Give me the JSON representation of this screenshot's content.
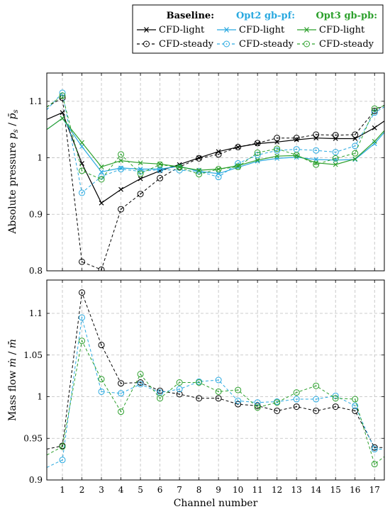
{
  "colors": {
    "baseline": "#000000",
    "opt2": "#29a9e0",
    "opt3": "#2ca02c"
  },
  "legend": {
    "groups": [
      {
        "key": "baseline",
        "header": "Baseline:",
        "light": "CFD-light",
        "steady": "CFD-steady"
      },
      {
        "key": "opt2",
        "header": "Opt2 gb-pf:",
        "light": "CFD-light",
        "steady": "CFD-steady"
      },
      {
        "key": "opt3",
        "header": "Opt3 gb-pb:",
        "light": "CFD-light",
        "steady": "CFD-steady"
      }
    ]
  },
  "chart_data": [
    {
      "type": "line",
      "ylabel": "Absolute pressure p_s / p̄_s",
      "xlabel": "",
      "xlim": [
        0.2,
        17.5
      ],
      "ylim": [
        0.8,
        1.15
      ],
      "yticks": [
        0.8,
        0.9,
        1.0,
        1.1
      ],
      "ytick_labels": [
        "0.8",
        "0.9",
        "1",
        "1.1"
      ],
      "grid": true,
      "x": [
        0.2,
        1,
        2,
        3,
        4,
        5,
        6,
        7,
        8,
        9,
        10,
        11,
        12,
        13,
        14,
        15,
        16,
        17,
        17.5
      ],
      "series": [
        {
          "group": "baseline",
          "kind": "light",
          "values": [
            1.068,
            1.08,
            0.99,
            0.92,
            0.944,
            0.963,
            0.977,
            0.988,
            1.0,
            1.011,
            1.019,
            1.025,
            1.028,
            1.032,
            1.035,
            1.034,
            1.034,
            1.053,
            1.065
          ]
        },
        {
          "group": "baseline",
          "kind": "steady",
          "values": [
            1.09,
            1.106,
            0.816,
            0.802,
            0.909,
            0.936,
            0.964,
            0.984,
            0.999,
            1.006,
            1.019,
            1.026,
            1.035,
            1.035,
            1.041,
            1.04,
            1.041,
            1.083,
            1.093
          ]
        },
        {
          "group": "opt2",
          "kind": "light",
          "values": [
            1.05,
            1.07,
            1.02,
            0.975,
            0.982,
            0.98,
            0.98,
            0.985,
            0.976,
            0.972,
            0.983,
            0.994,
            0.999,
            1.001,
            0.997,
            0.996,
            0.997,
            1.025,
            1.045
          ]
        },
        {
          "group": "opt2",
          "kind": "steady",
          "values": [
            1.085,
            1.115,
            0.938,
            0.967,
            0.98,
            0.976,
            0.979,
            0.978,
            0.976,
            0.966,
            0.99,
            1.005,
            1.013,
            1.015,
            1.013,
            1.01,
            1.021,
            1.08,
            1.09
          ]
        },
        {
          "group": "opt3",
          "kind": "light",
          "values": [
            1.05,
            1.07,
            1.027,
            0.984,
            0.995,
            0.991,
            0.989,
            0.984,
            0.978,
            0.98,
            0.986,
            0.996,
            1.003,
            1.004,
            0.991,
            0.988,
            0.998,
            1.029,
            1.048
          ]
        },
        {
          "group": "opt3",
          "kind": "steady",
          "values": [
            1.09,
            1.11,
            0.977,
            0.962,
            1.006,
            0.972,
            0.988,
            0.983,
            0.971,
            0.98,
            0.984,
            1.009,
            1.016,
            1.005,
            0.988,
            0.999,
            1.008,
            1.087,
            1.092
          ]
        }
      ]
    },
    {
      "type": "line",
      "ylabel": "Mass flow ṁ / m̄̇",
      "xlabel": "Channel number",
      "xlim": [
        0.2,
        17.5
      ],
      "ylim": [
        0.9,
        1.14
      ],
      "yticks": [
        0.9,
        0.95,
        1.0,
        1.05,
        1.1
      ],
      "ytick_labels": [
        "0.9",
        "0.95",
        "1",
        "1.05",
        "1.1"
      ],
      "xticks": [
        1,
        2,
        3,
        4,
        5,
        6,
        7,
        8,
        9,
        10,
        11,
        12,
        13,
        14,
        15,
        16,
        17
      ],
      "xtick_labels": [
        "1",
        "2",
        "3",
        "4",
        "5",
        "6",
        "7",
        "8",
        "9",
        "10",
        "11",
        "12",
        "13",
        "14",
        "15",
        "16",
        "17"
      ],
      "grid": true,
      "x": [
        0.2,
        1,
        2,
        3,
        4,
        5,
        6,
        7,
        8,
        9,
        10,
        11,
        12,
        13,
        14,
        15,
        16,
        17,
        17.5
      ],
      "series": [
        {
          "group": "baseline",
          "kind": "steady",
          "values": [
            0.937,
            0.941,
            1.125,
            1.062,
            1.016,
            1.017,
            1.007,
            1.003,
            0.998,
            0.998,
            0.991,
            0.989,
            0.983,
            0.988,
            0.983,
            0.988,
            0.983,
            0.939,
            0.939
          ]
        },
        {
          "group": "opt2",
          "kind": "steady",
          "values": [
            0.915,
            0.924,
            1.095,
            1.006,
            1.004,
            1.015,
            1.005,
            1.009,
            1.018,
            1.02,
            0.995,
            0.993,
            0.994,
            0.997,
            0.997,
            1.001,
            0.989,
            0.937,
            0.937
          ]
        },
        {
          "group": "opt3",
          "kind": "steady",
          "values": [
            0.93,
            0.94,
            1.067,
            1.021,
            0.982,
            1.027,
            0.998,
            1.017,
            1.017,
            1.006,
            1.008,
            0.987,
            0.993,
            1.005,
            1.013,
            0.998,
            0.997,
            0.919,
            0.928
          ]
        }
      ]
    }
  ]
}
